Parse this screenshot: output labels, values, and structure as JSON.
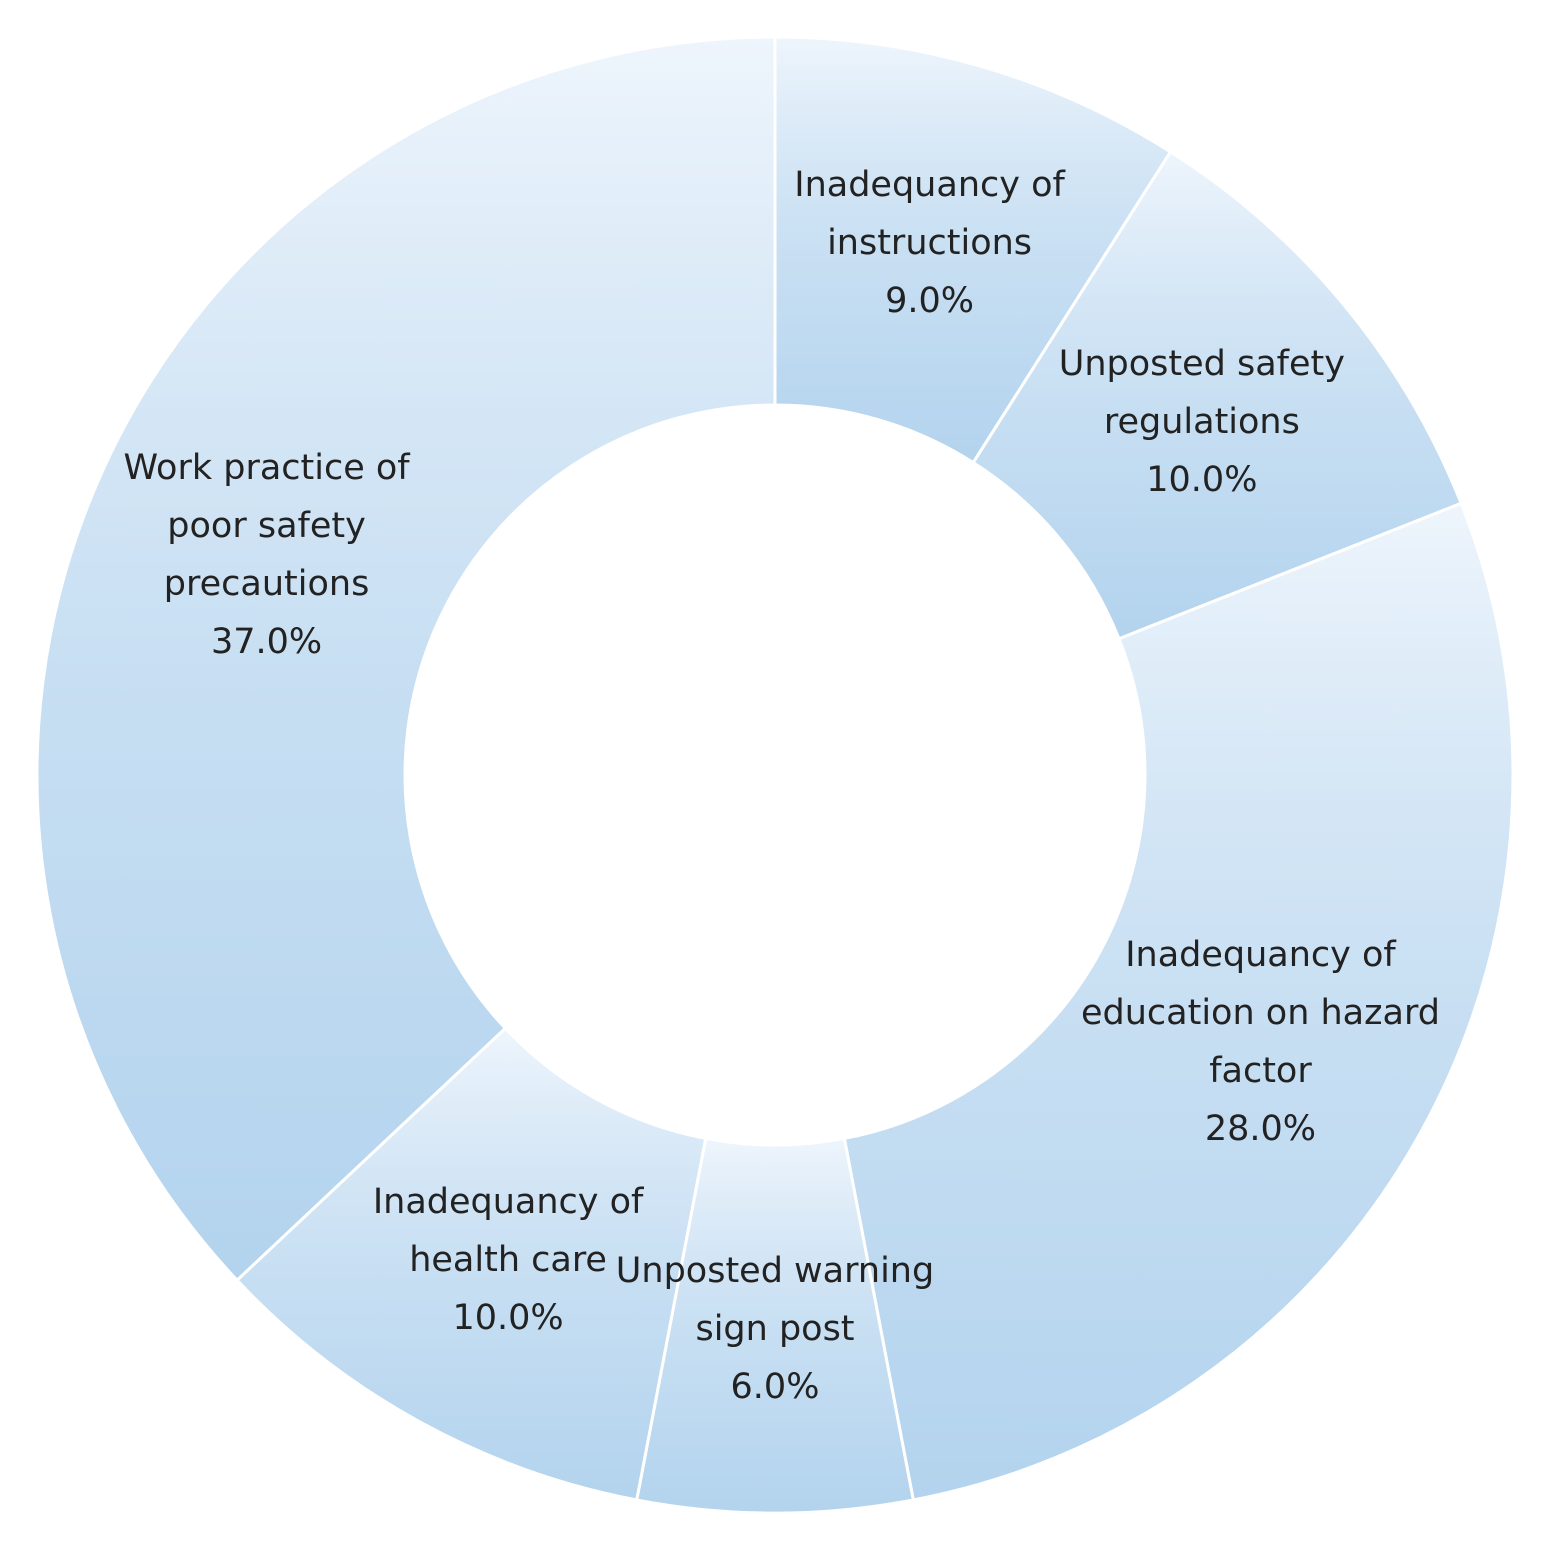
{
  "chart_data": {
    "type": "donut",
    "categories": [
      "Inadequancy of\ninstructions",
      "Unposted safety\nregulations",
      "Inadequancy of\neducation on hazard\nfactor",
      "Unposted warning\nsign post",
      "Inadequancy of\nhealth care",
      "Work practice of\npoor safety\nprecautions"
    ],
    "values": [
      9,
      10,
      28,
      6,
      10,
      37
    ],
    "value_labels": [
      "9.0%",
      "10.0%",
      "28.0%",
      "6.0%",
      "10.0%",
      "37.0%"
    ],
    "color": "#b3d3ee"
  }
}
